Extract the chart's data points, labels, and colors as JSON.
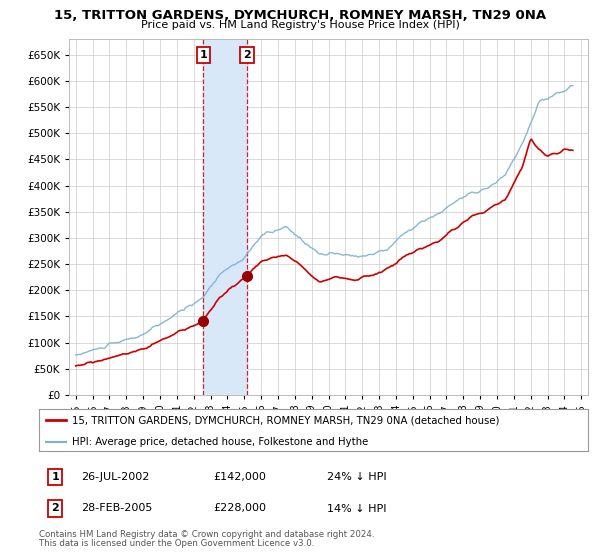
{
  "title": "15, TRITTON GARDENS, DYMCHURCH, ROMNEY MARSH, TN29 0NA",
  "subtitle": "Price paid vs. HM Land Registry's House Price Index (HPI)",
  "legend_line1": "15, TRITTON GARDENS, DYMCHURCH, ROMNEY MARSH, TN29 0NA (detached house)",
  "legend_line2": "HPI: Average price, detached house, Folkestone and Hythe",
  "sale1_label": "1",
  "sale1_date": "26-JUL-2002",
  "sale1_price": "£142,000",
  "sale1_hpi": "24% ↓ HPI",
  "sale2_label": "2",
  "sale2_date": "28-FEB-2005",
  "sale2_price": "£228,000",
  "sale2_hpi": "14% ↓ HPI",
  "footer1": "Contains HM Land Registry data © Crown copyright and database right 2024.",
  "footer2": "This data is licensed under the Open Government Licence v3.0.",
  "price_color": "#cc0000",
  "hpi_color": "#7bafd4",
  "highlight_color": "#d8e8f8",
  "background_color": "#ffffff",
  "grid_color": "#cccccc",
  "ylim": [
    0,
    680000
  ],
  "yticks": [
    0,
    50000,
    100000,
    150000,
    200000,
    250000,
    300000,
    350000,
    400000,
    450000,
    500000,
    550000,
    600000,
    650000
  ],
  "sale1_year": 2002.58,
  "sale2_year": 2005.16,
  "xmin": 1994.6,
  "xmax": 2025.4
}
